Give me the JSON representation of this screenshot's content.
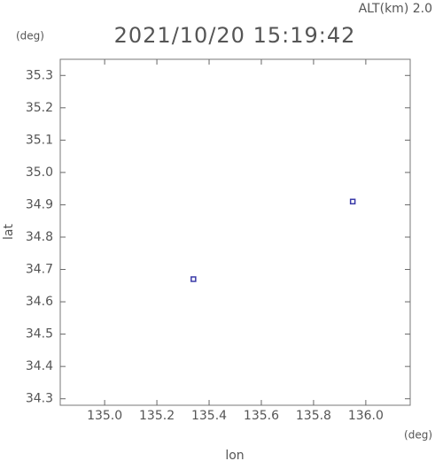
{
  "chart_data": {
    "type": "scatter",
    "title": "2021/10/20 15:19:42",
    "annotation": "ALT(km) 2.0",
    "y_unit": "(deg)",
    "x_unit": "(deg)",
    "xlabel": "lon",
    "ylabel": "lat",
    "x": [
      135.34,
      135.95
    ],
    "values": [
      34.67,
      34.91
    ],
    "color": "#3a3aa8",
    "marker": "square",
    "xlim": [
      134.83,
      136.17
    ],
    "ylim": [
      34.28,
      35.35
    ],
    "xticks": [
      {
        "value": 135,
        "label": "135.0"
      },
      135.2,
      135.4,
      135.6,
      135.8,
      {
        "value": 136,
        "label": "136.0"
      }
    ],
    "yticks": [
      34.3,
      34.4,
      34.5,
      34.6,
      34.7,
      34.8,
      34.9,
      {
        "value": 35,
        "label": "35.0"
      },
      35.1,
      35.2,
      35.3
    ]
  }
}
